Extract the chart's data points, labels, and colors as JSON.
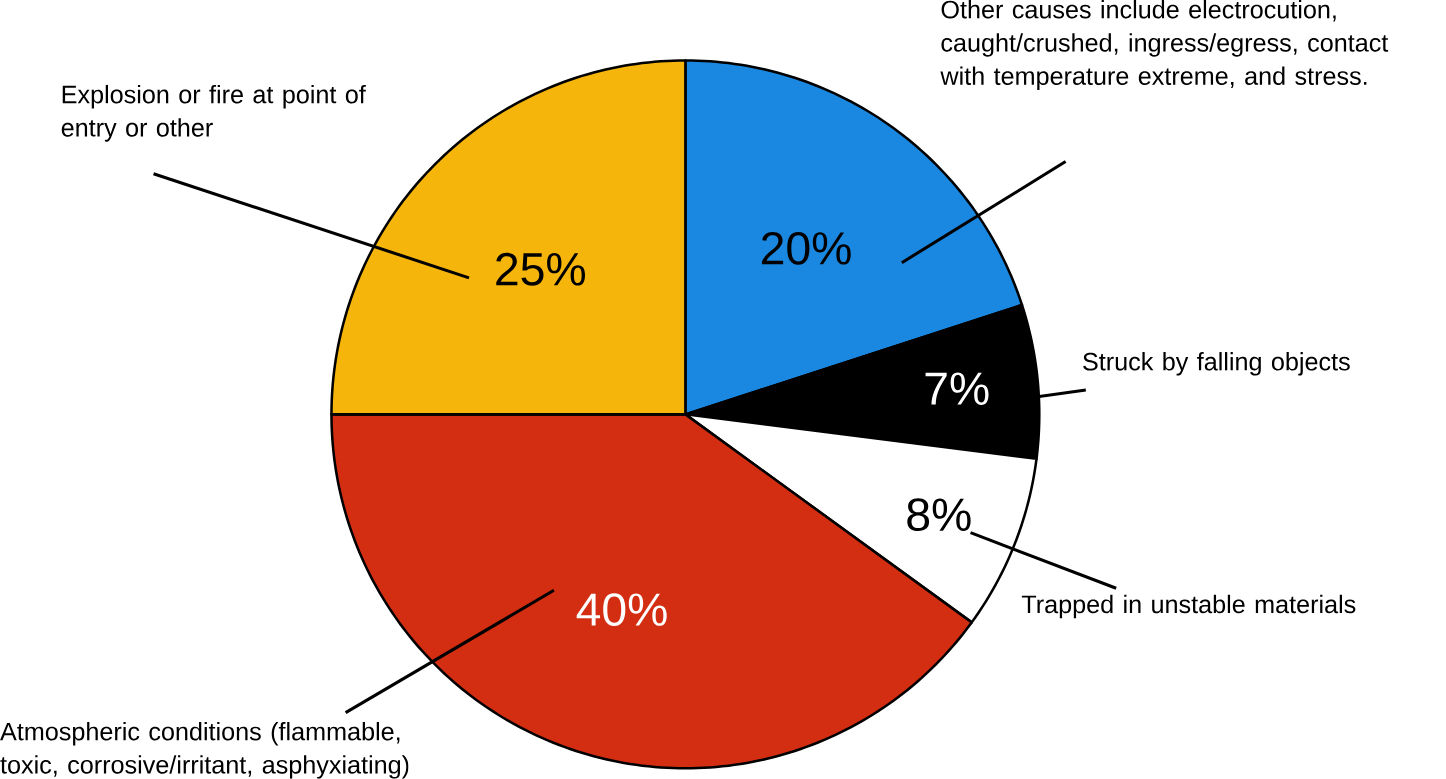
{
  "chart_data": {
    "type": "pie",
    "categories": [
      "Other causes include electrocution, caught/crushed, ingress/egress, contact with temperature extreme, and stress.",
      "Struck by falling objects",
      "Trapped in unstable materials",
      "Atmospheric conditions (flammable, toxic, corrosive/irritant, asphyxiating)",
      "Explosion or fire at point of entry or other"
    ],
    "values": [
      20,
      7,
      8,
      40,
      25
    ],
    "value_labels": [
      "20%",
      "7%",
      "8%",
      "40%",
      "25%"
    ],
    "colors": [
      "#1a88e0",
      "#000000",
      "#ffffff",
      "#d42e12",
      "#f5b50a"
    ]
  }
}
